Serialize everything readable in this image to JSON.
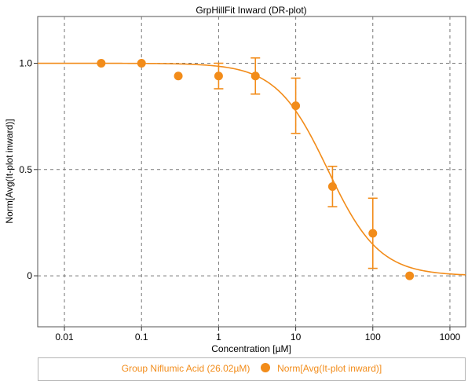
{
  "chart_data": {
    "type": "scatter",
    "title": "GrpHillFit Inward (DR-plot)",
    "xlabel": "Concentration [µM]",
    "ylabel": "Norm[Avg(It-plot inward)]",
    "x_scale": "log",
    "xlim": [
      0.0045,
      1600
    ],
    "ylim": [
      -0.24,
      1.22
    ],
    "x_ticks": [
      0.01,
      0.1,
      1,
      10,
      100,
      1000
    ],
    "x_tick_labels": [
      "0.01",
      "0.1",
      "1",
      "10",
      "100",
      "1000"
    ],
    "y_ticks": [
      0,
      0.5,
      1.0
    ],
    "y_tick_labels": [
      "0",
      "0.5",
      "1.0"
    ],
    "grid": true,
    "series": [
      {
        "name": "Norm[Avg(It-plot inward)]",
        "color": "#f28c1a",
        "x": [
          0.03,
          0.1,
          0.3,
          1,
          3,
          10,
          30,
          100,
          300
        ],
        "y": [
          1.0,
          1.0,
          0.94,
          0.94,
          0.94,
          0.8,
          0.42,
          0.2,
          0.0
        ],
        "err": [
          0,
          0,
          0,
          0.06,
          0.085,
          0.13,
          0.095,
          0.165,
          0
        ]
      }
    ],
    "fit": {
      "name": "Group Niflumic Acid (26.02µM)",
      "model": "hill",
      "ic50": 26.02,
      "hill": 1.3,
      "top": 1.0,
      "bottom": 0.0,
      "color": "#f28c1a"
    }
  },
  "legend": {
    "group_label": "Group Niflumic Acid (26.02µM)",
    "series_label": "Norm[Avg(It-plot inward)]"
  }
}
